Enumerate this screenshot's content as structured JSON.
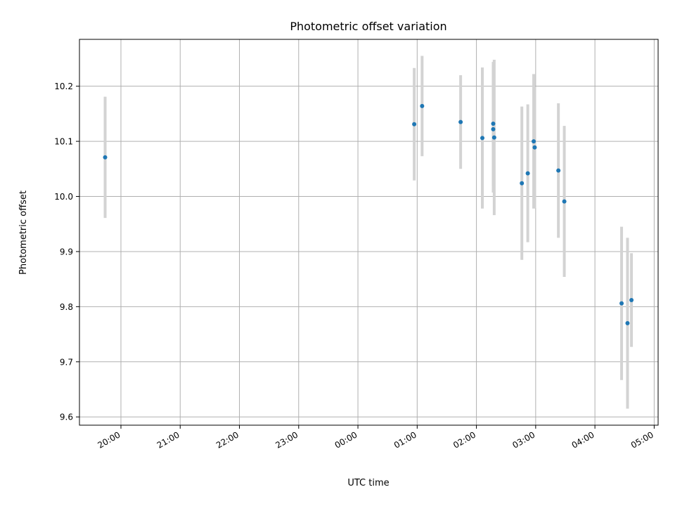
{
  "chart_data": {
    "type": "scatter",
    "title": "Photometric offset variation",
    "xlabel": "UTC time",
    "ylabel": "Photometric offset",
    "x_tick_labels": [
      "20:00",
      "21:00",
      "22:00",
      "23:00",
      "00:00",
      "01:00",
      "02:00",
      "03:00",
      "04:00",
      "05:00"
    ],
    "x_ticks": [
      "2024-01-01T20:00",
      "2024-01-01T21:00",
      "2024-01-01T22:00",
      "2024-01-01T23:00",
      "2024-01-02T00:00",
      "2024-01-02T01:00",
      "2024-01-02T02:00",
      "2024-01-02T03:00",
      "2024-01-02T04:00",
      "2024-01-02T05:00"
    ],
    "y_ticks": [
      9.6,
      9.7,
      9.8,
      9.9,
      10.0,
      10.1,
      10.2
    ],
    "y_tick_labels": [
      "9.6",
      "9.7",
      "9.8",
      "9.9",
      "10.0",
      "10.1",
      "10.2"
    ],
    "xlim": [
      "2024-01-01T19:18",
      "2024-01-02T05:04"
    ],
    "ylim": [
      9.585,
      10.285
    ],
    "grid": true,
    "colors": {
      "points": "#1f77b4",
      "errorbars": "#d3d3d3"
    },
    "series": [
      {
        "points": [
          {
            "x": "2024-01-01T19:44",
            "y": 10.071,
            "yerr": 0.11
          },
          {
            "x": "2024-01-02T00:57",
            "y": 10.131,
            "yerr": 0.102
          },
          {
            "x": "2024-01-02T01:05",
            "y": 10.164,
            "yerr": 0.091
          },
          {
            "x": "2024-01-02T01:44",
            "y": 10.135,
            "yerr": 0.085
          },
          {
            "x": "2024-01-02T02:06",
            "y": 10.106,
            "yerr": 0.128
          },
          {
            "x": "2024-01-02T02:17",
            "y": 10.132,
            "yerr": 0.112
          },
          {
            "x": "2024-01-02T02:17",
            "y": 10.122,
            "yerr": 0.115
          },
          {
            "x": "2024-01-02T02:18",
            "y": 10.107,
            "yerr": 0.141
          },
          {
            "x": "2024-01-02T02:46",
            "y": 10.024,
            "yerr": 0.139
          },
          {
            "x": "2024-01-02T02:52",
            "y": 10.042,
            "yerr": 0.125
          },
          {
            "x": "2024-01-02T02:58",
            "y": 10.1,
            "yerr": 0.122
          },
          {
            "x": "2024-01-02T02:59",
            "y": 10.089,
            "yerr": 0.11
          },
          {
            "x": "2024-01-02T03:23",
            "y": 10.047,
            "yerr": 0.122
          },
          {
            "x": "2024-01-02T03:29",
            "y": 9.991,
            "yerr": 0.137
          },
          {
            "x": "2024-01-02T04:27",
            "y": 9.806,
            "yerr": 0.139
          },
          {
            "x": "2024-01-02T04:33",
            "y": 9.77,
            "yerr": 0.155
          },
          {
            "x": "2024-01-02T04:37",
            "y": 9.812,
            "yerr": 0.085
          }
        ]
      }
    ]
  }
}
